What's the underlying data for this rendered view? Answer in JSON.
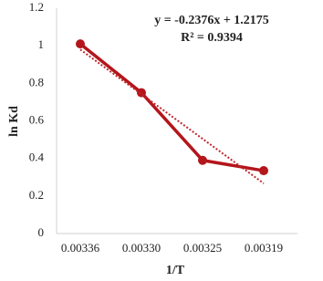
{
  "chart_data": {
    "type": "line",
    "x_label": "1/T",
    "y_label": "ln Kd",
    "categories": [
      "0.00336",
      "0.00330",
      "0.00325",
      "0.00319"
    ],
    "series": [
      {
        "name": "ln Kd",
        "color": "#b3161b",
        "values": [
          1.01,
          0.75,
          0.39,
          0.335
        ]
      }
    ],
    "trendline": {
      "slope": -0.2376,
      "intercept": 1.2175,
      "equation": "y = -0.2376x + 1.2175",
      "r_squared": "R² = 0.9394",
      "color": "#c0262b"
    },
    "ylim": [
      0,
      1.2
    ],
    "yticks": [
      0,
      0.2,
      0.4,
      0.6,
      0.8,
      1,
      1.2
    ],
    "grid": false
  }
}
